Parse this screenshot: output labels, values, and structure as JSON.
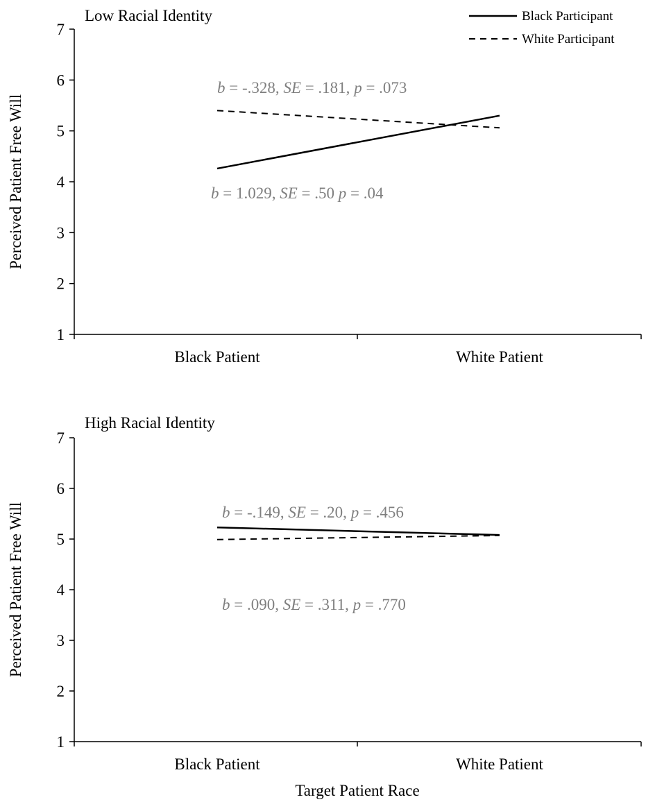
{
  "legend": {
    "placement": "top-right",
    "items": [
      {
        "label": "Black Participant",
        "line_style": "solid"
      },
      {
        "label": "White Participant",
        "line_style": "dashed"
      }
    ]
  },
  "chart_data": [
    {
      "type": "line",
      "title": "Low Racial Identity",
      "categories": [
        "Black Patient",
        "White Patient"
      ],
      "ylabel": "Perceived Patient Free Will",
      "xlabel": "",
      "ylim": [
        1,
        7
      ],
      "yticks": [
        "1",
        "2",
        "3",
        "4",
        "5",
        "6",
        "7"
      ],
      "grid": false,
      "series": [
        {
          "name": "Black Participant",
          "values": [
            4.26,
            5.3
          ],
          "line_style": "solid",
          "color": "#000000"
        },
        {
          "name": "White Participant",
          "values": [
            5.4,
            5.06
          ],
          "line_style": "dashed",
          "color": "#000000"
        }
      ],
      "annotations": [
        {
          "parts": [
            [
              "b",
              true
            ],
            [
              " = -.328, ",
              false
            ],
            [
              "SE",
              true
            ],
            [
              " = .181, ",
              false
            ],
            [
              "p",
              true
            ],
            [
              " = .073",
              false
            ]
          ]
        },
        {
          "parts": [
            [
              "b",
              true
            ],
            [
              " = 1.029, ",
              false
            ],
            [
              "SE",
              true
            ],
            [
              " = .50 ",
              false
            ],
            [
              "p",
              true
            ],
            [
              " = .04",
              false
            ]
          ]
        }
      ]
    },
    {
      "type": "line",
      "title": "High Racial Identity",
      "categories": [
        "Black Patient",
        "White Patient"
      ],
      "ylabel": "Perceived Patient Free Will",
      "xlabel": "Target Patient Race",
      "ylim": [
        1,
        7
      ],
      "yticks": [
        "1",
        "2",
        "3",
        "4",
        "5",
        "6",
        "7"
      ],
      "grid": false,
      "series": [
        {
          "name": "Black Participant",
          "values": [
            5.23,
            5.08
          ],
          "line_style": "solid",
          "color": "#000000"
        },
        {
          "name": "White Participant",
          "values": [
            4.99,
            5.07
          ],
          "line_style": "dashed",
          "color": "#000000"
        }
      ],
      "annotations": [
        {
          "parts": [
            [
              "b",
              true
            ],
            [
              " = -.149, ",
              false
            ],
            [
              "SE",
              true
            ],
            [
              " = .20, ",
              false
            ],
            [
              "p",
              true
            ],
            [
              " = .456",
              false
            ]
          ]
        },
        {
          "parts": [
            [
              "b",
              true
            ],
            [
              " = .090, ",
              false
            ],
            [
              "SE",
              true
            ],
            [
              " = .311, ",
              false
            ],
            [
              "p",
              true
            ],
            [
              " = .770",
              false
            ]
          ]
        }
      ]
    }
  ]
}
